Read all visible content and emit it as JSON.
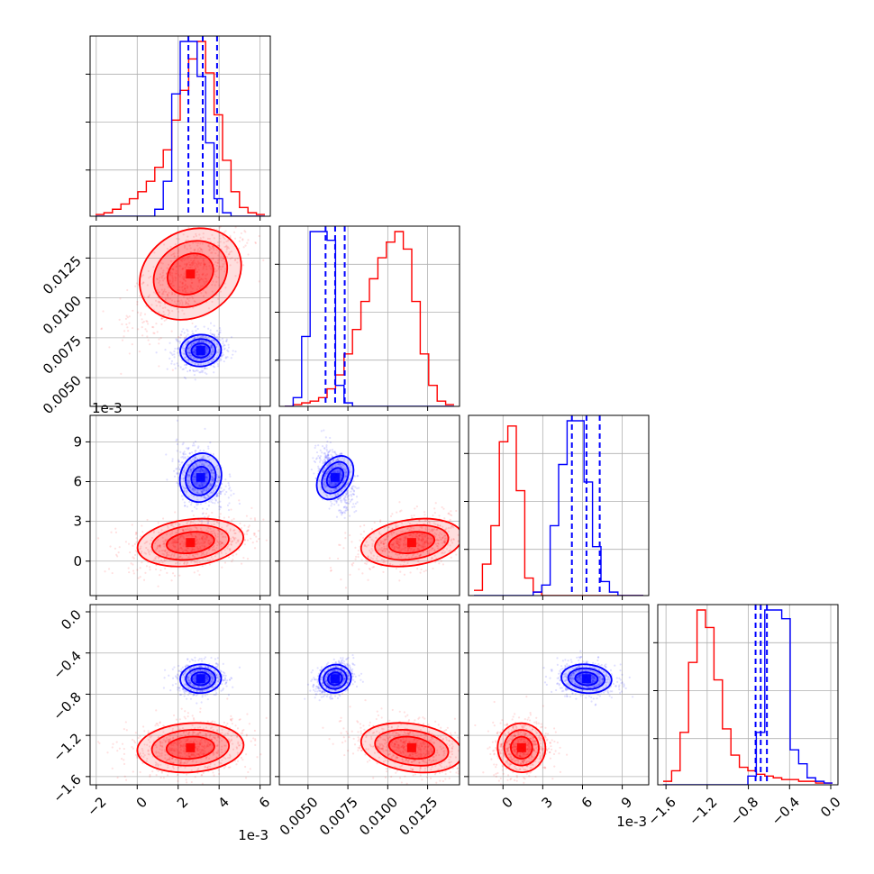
{
  "chart_data": {
    "type": "corner",
    "parameters": [
      {
        "axis_offset": "1e-3",
        "range": [
          -2.3,
          6.5
        ],
        "ticks": [
          -2,
          0,
          2,
          4,
          6
        ],
        "tick_labels": [
          "−2",
          "0",
          "2",
          "4",
          "6"
        ]
      },
      {
        "axis_offset": "",
        "range": [
          0.0032,
          0.0145
        ],
        "ticks": [
          0.005,
          0.0075,
          0.01,
          0.0125
        ],
        "tick_labels": [
          "0.0050",
          "0.0075",
          "0.0100",
          "0.0125"
        ]
      },
      {
        "axis_offset": "1e-3",
        "range": [
          -2.6,
          11.0
        ],
        "ticks": [
          0,
          3,
          6,
          9
        ],
        "tick_labels": [
          "0",
          "3",
          "6",
          "9"
        ]
      },
      {
        "axis_offset": "",
        "range": [
          -1.68,
          0.07
        ],
        "ticks": [
          -1.6,
          -1.2,
          -0.8,
          -0.4,
          0.0
        ],
        "tick_labels": [
          "−1.6",
          "−1.2",
          "−0.8",
          "−0.4",
          "0.0"
        ]
      }
    ],
    "series": [
      {
        "color": "#ff0000",
        "mean": [
          2.6,
          0.0115,
          1.4,
          -1.32
        ],
        "sd": [
          1.3,
          0.0016,
          0.9,
          0.12
        ],
        "quantiles": null,
        "hist": [
          [
            0.01,
            0.02,
            0.04,
            0.07,
            0.1,
            0.14,
            0.2,
            0.28,
            0.38,
            0.55,
            0.72,
            0.9,
            1.0,
            0.82,
            0.58,
            0.32,
            0.14,
            0.05,
            0.02,
            0.01
          ],
          [
            0.0,
            0.01,
            0.02,
            0.03,
            0.05,
            0.1,
            0.18,
            0.3,
            0.44,
            0.6,
            0.73,
            0.85,
            0.94,
            1.0,
            0.9,
            0.6,
            0.3,
            0.12,
            0.03,
            0.01
          ],
          [
            0.03,
            0.18,
            0.4,
            0.88,
            0.97,
            0.6,
            0.1,
            0.02,
            0.0,
            0.0,
            0.0,
            0.0,
            0.0,
            0.0,
            0.0,
            0.0,
            0.0,
            0.0,
            0.0,
            0.0
          ],
          [
            0.02,
            0.08,
            0.3,
            0.7,
            1.0,
            0.9,
            0.6,
            0.32,
            0.17,
            0.1,
            0.08,
            0.06,
            0.05,
            0.04,
            0.03,
            0.03,
            0.02,
            0.02,
            0.01,
            0.01
          ]
        ]
      },
      {
        "color": "#0000ff",
        "mean": [
          3.1,
          0.0067,
          6.3,
          -0.65
        ],
        "sd": [
          0.5,
          0.0005,
          0.95,
          0.07
        ],
        "quantiles": [
          [
            2.5,
            3.2,
            3.9
          ],
          [
            0.0061,
            0.0067,
            0.0073
          ],
          [
            5.2,
            6.3,
            7.3
          ],
          [
            -0.73,
            -0.68,
            -0.62
          ]
        ],
        "hist": [
          [
            0.0,
            0.0,
            0.0,
            0.0,
            0.0,
            0.0,
            0.0,
            0.04,
            0.2,
            0.7,
            1.0,
            1.0,
            0.8,
            0.42,
            0.1,
            0.02,
            0.0,
            0.0,
            0.0,
            0.0
          ],
          [
            0.0,
            0.05,
            0.4,
            1.0,
            1.0,
            0.95,
            0.12,
            0.02,
            0.0,
            0.0,
            0.0,
            0.0,
            0.0,
            0.0,
            0.0,
            0.0,
            0.0,
            0.0,
            0.0,
            0.0
          ],
          [
            0.0,
            0.0,
            0.0,
            0.0,
            0.0,
            0.0,
            0.0,
            0.02,
            0.06,
            0.4,
            0.75,
            1.0,
            1.0,
            0.65,
            0.28,
            0.08,
            0.02,
            0.0,
            0.0,
            0.0
          ],
          [
            0.0,
            0.0,
            0.0,
            0.0,
            0.0,
            0.0,
            0.0,
            0.0,
            0.0,
            0.0,
            0.05,
            0.3,
            1.0,
            1.0,
            0.95,
            0.2,
            0.12,
            0.04,
            0.02,
            0.01
          ]
        ]
      }
    ],
    "grid": true,
    "contour_levels": 3
  }
}
